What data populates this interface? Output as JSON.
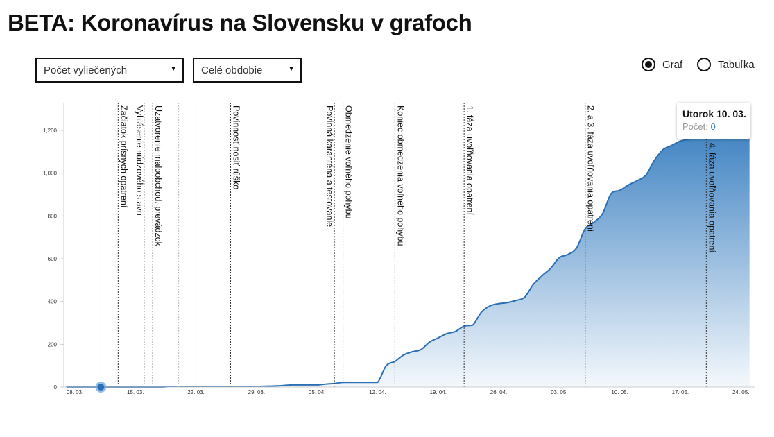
{
  "title": "BETA: Koronavírus na Slovensku v grafoch",
  "controls": {
    "metric_select": "Počet vyliečených",
    "period_select": "Celé obdobie",
    "view_options": [
      {
        "label": "Graf",
        "selected": true
      },
      {
        "label": "Tabuľka",
        "selected": false
      }
    ]
  },
  "tooltip": {
    "title": "Utorok 10. 03.",
    "count_label": "Počet:",
    "count_value": "0"
  },
  "colors": {
    "line": "#2b6fb5",
    "fill_top": "#2f78bd",
    "fill_bottom": "#f4f8fc"
  },
  "chart_data": {
    "type": "area",
    "title": "Počet vyliečených",
    "ylim": [
      0,
      1330
    ],
    "yticks": [
      "0",
      "200",
      "400",
      "600",
      "800",
      "1,000",
      "1,200"
    ],
    "ytick_values": [
      0,
      200,
      400,
      600,
      800,
      1000,
      1200
    ],
    "xticks": [
      "08. 03.",
      "15. 03.",
      "22. 03.",
      "29. 03.",
      "05. 04.",
      "12. 04.",
      "19. 04.",
      "26. 04.",
      "03. 05.",
      "10. 05.",
      "17. 05.",
      "24. 05."
    ],
    "x_day_index_note": "days since 01.03.",
    "xtick_days": [
      7,
      14,
      21,
      28,
      35,
      42,
      49,
      56,
      63,
      70,
      77,
      84
    ],
    "series": {
      "name": "Počet vyliečených",
      "days": [
        6,
        7,
        8,
        9,
        10,
        11,
        12,
        13,
        14,
        15,
        16,
        17,
        18,
        19,
        20,
        21,
        22,
        23,
        24,
        25,
        26,
        27,
        28,
        29,
        30,
        31,
        32,
        33,
        34,
        35,
        36,
        37,
        38,
        39,
        40,
        41,
        42,
        43,
        44,
        45,
        46,
        47,
        48,
        49,
        50,
        51,
        52,
        53,
        54,
        55,
        56,
        57,
        58,
        59,
        60,
        61,
        62,
        63,
        64,
        65,
        66,
        67,
        68,
        69,
        70,
        71,
        72,
        73,
        74,
        75,
        76,
        77,
        78,
        79,
        80,
        81,
        82,
        83,
        84,
        85
      ],
      "values": [
        0,
        0,
        0,
        0,
        0,
        0,
        0,
        0,
        0,
        0,
        0,
        0,
        2,
        2,
        3,
        3,
        3,
        3,
        3,
        3,
        3,
        3,
        3,
        4,
        5,
        7,
        10,
        10,
        10,
        10,
        14,
        17,
        22,
        22,
        22,
        22,
        22,
        100,
        120,
        150,
        165,
        175,
        210,
        230,
        250,
        260,
        285,
        290,
        350,
        380,
        390,
        395,
        405,
        420,
        480,
        520,
        555,
        605,
        620,
        650,
        740,
        770,
        810,
        905,
        920,
        945,
        965,
        990,
        1060,
        1110,
        1130,
        1150,
        1160,
        1175,
        1200,
        1220,
        1245,
        1270,
        1290,
        1320
      ]
    },
    "hover_point": {
      "day": 10,
      "value": 0
    },
    "annotations": [
      {
        "day": 12,
        "label": "Začiatok prísnych opatrení"
      },
      {
        "day": 15,
        "label": "Vyhlásenie núdzového stavu"
      },
      {
        "day": 16,
        "label": "Uzatvorenie maloobchod. prevádzok"
      },
      {
        "day": 25,
        "label": "Povinnosť nosiť rúško"
      },
      {
        "day": 37,
        "label": "Povinná karanténa a testovanie"
      },
      {
        "day": 38,
        "label": "Obmedzenie voľného pohybu"
      },
      {
        "day": 44,
        "label": "Koniec obmedzenia voľného pohybu"
      },
      {
        "day": 52,
        "label": "1. fáza uvoľňovania opatrení"
      },
      {
        "day": 66,
        "label": "2. a 3. fáza uvoľňovania opatrení"
      },
      {
        "day": 80,
        "label": "4. fáza uvoľňovania opatrení"
      }
    ],
    "minor_marker_days": [
      10,
      19,
      21
    ],
    "grid": false
  }
}
